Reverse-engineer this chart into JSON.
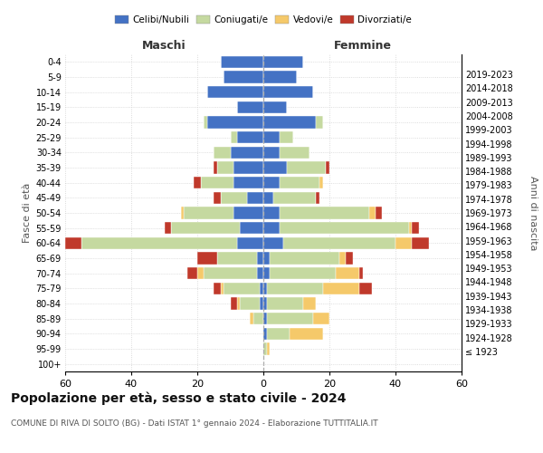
{
  "age_groups": [
    "100+",
    "95-99",
    "90-94",
    "85-89",
    "80-84",
    "75-79",
    "70-74",
    "65-69",
    "60-64",
    "55-59",
    "50-54",
    "45-49",
    "40-44",
    "35-39",
    "30-34",
    "25-29",
    "20-24",
    "15-19",
    "10-14",
    "5-9",
    "0-4"
  ],
  "birth_years": [
    "≤ 1923",
    "1924-1928",
    "1929-1933",
    "1934-1938",
    "1939-1943",
    "1944-1948",
    "1949-1953",
    "1954-1958",
    "1959-1963",
    "1964-1968",
    "1969-1973",
    "1974-1978",
    "1979-1983",
    "1984-1988",
    "1989-1993",
    "1994-1998",
    "1999-2003",
    "2004-2008",
    "2009-2013",
    "2014-2018",
    "2019-2023"
  ],
  "colors": {
    "celibe": "#4472c4",
    "coniugato": "#c5d9a0",
    "vedovo": "#f5c96a",
    "divorziato": "#c0392b"
  },
  "males": {
    "celibe": [
      0,
      0,
      0,
      0,
      1,
      1,
      2,
      2,
      8,
      7,
      9,
      5,
      9,
      9,
      10,
      8,
      17,
      8,
      17,
      12,
      13
    ],
    "coniugato": [
      0,
      0,
      0,
      3,
      6,
      11,
      16,
      12,
      47,
      21,
      15,
      8,
      10,
      5,
      5,
      2,
      1,
      0,
      0,
      0,
      0
    ],
    "vedovo": [
      0,
      0,
      0,
      1,
      1,
      1,
      2,
      0,
      0,
      0,
      1,
      0,
      0,
      0,
      0,
      0,
      0,
      0,
      0,
      0,
      0
    ],
    "divorziato": [
      0,
      0,
      0,
      0,
      2,
      2,
      3,
      6,
      5,
      2,
      0,
      2,
      2,
      1,
      0,
      0,
      0,
      0,
      0,
      0,
      0
    ]
  },
  "females": {
    "celibe": [
      0,
      0,
      1,
      1,
      1,
      1,
      2,
      2,
      6,
      5,
      5,
      3,
      5,
      7,
      5,
      5,
      16,
      7,
      15,
      10,
      12
    ],
    "coniugato": [
      0,
      1,
      7,
      14,
      11,
      17,
      20,
      21,
      34,
      39,
      27,
      13,
      12,
      12,
      9,
      4,
      2,
      0,
      0,
      0,
      0
    ],
    "vedovo": [
      0,
      1,
      10,
      5,
      4,
      11,
      7,
      2,
      5,
      1,
      2,
      0,
      1,
      0,
      0,
      0,
      0,
      0,
      0,
      0,
      0
    ],
    "divorziato": [
      0,
      0,
      0,
      0,
      0,
      4,
      1,
      2,
      5,
      2,
      2,
      1,
      0,
      1,
      0,
      0,
      0,
      0,
      0,
      0,
      0
    ]
  },
  "xlim": 60,
  "title": "Popolazione per età, sesso e stato civile - 2024",
  "subtitle": "COMUNE DI RIVA DI SOLTO (BG) - Dati ISTAT 1° gennaio 2024 - Elaborazione TUTTITALIA.IT",
  "ylabel_left": "Fasce di età",
  "ylabel_right": "Anni di nascita",
  "xlabel_maschi": "Maschi",
  "xlabel_femmine": "Femmine",
  "background_color": "#ffffff",
  "grid_color": "#cccccc"
}
